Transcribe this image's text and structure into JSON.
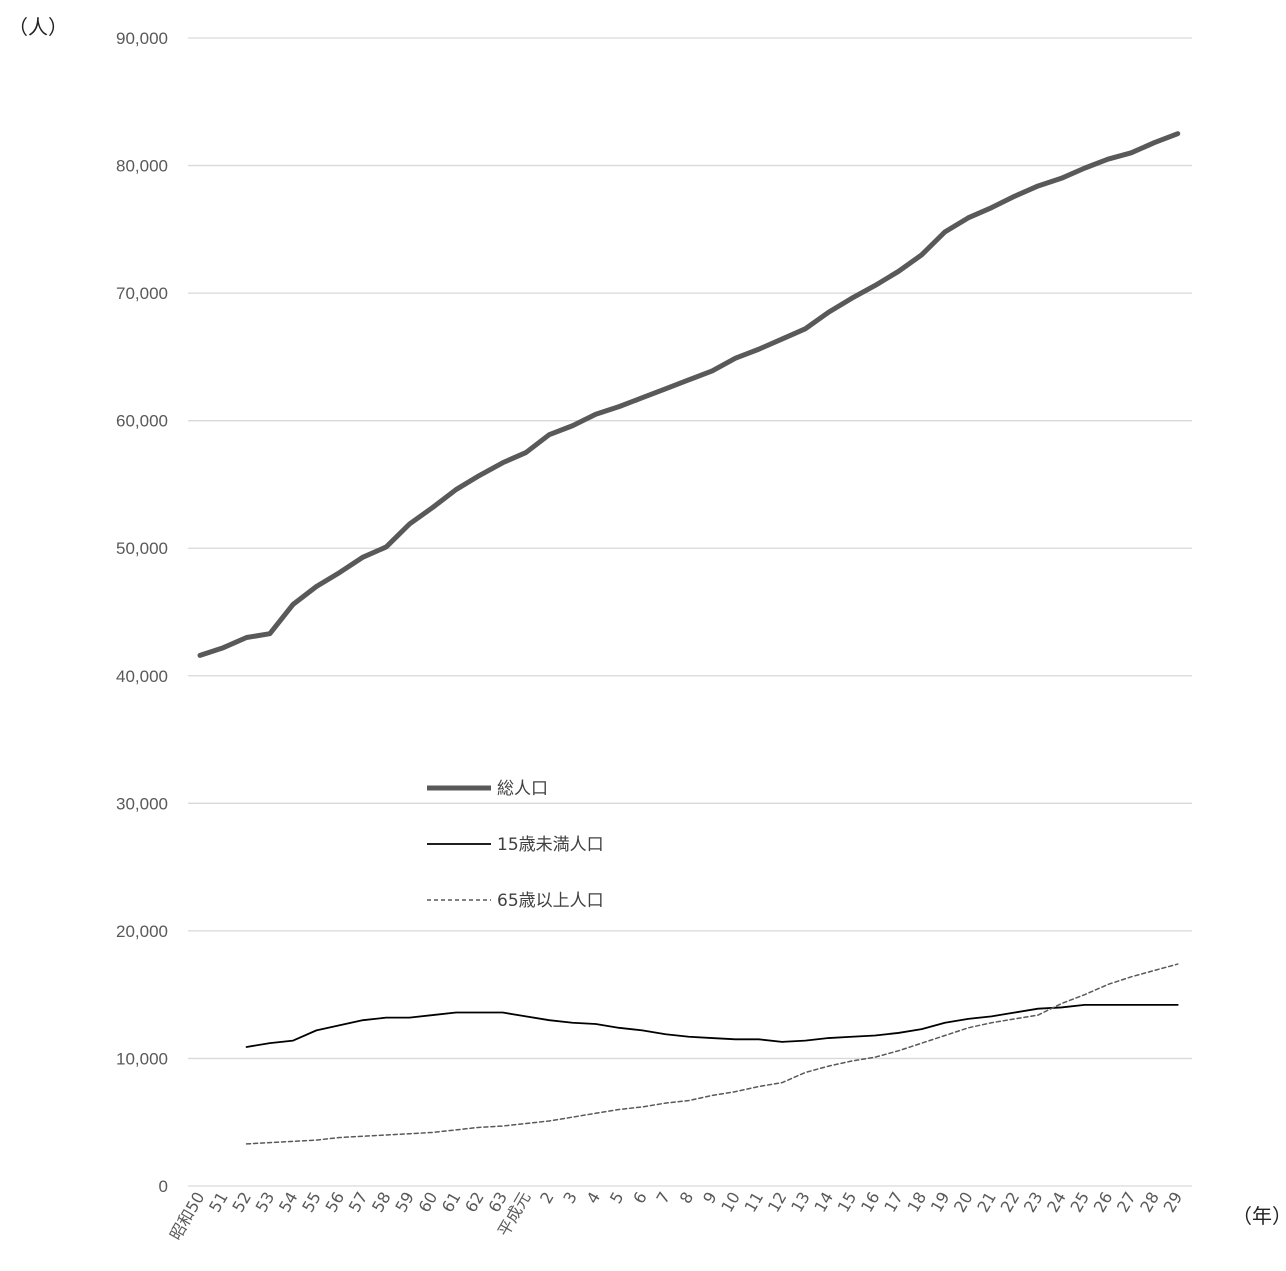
{
  "chart_data": {
    "type": "line",
    "y_unit_label": "（人）",
    "x_unit_label": "（年）",
    "ylim": [
      0,
      90000
    ],
    "yticks": [
      0,
      10000,
      20000,
      30000,
      40000,
      50000,
      60000,
      70000,
      80000,
      90000
    ],
    "ytick_labels": [
      "0",
      "10,000",
      "20,000",
      "30,000",
      "40,000",
      "50,000",
      "60,000",
      "70,000",
      "80,000",
      "90,000"
    ],
    "grid": true,
    "legend_position": "center-left",
    "categories": [
      "昭和50",
      "51",
      "52",
      "53",
      "54",
      "55",
      "56",
      "57",
      "58",
      "59",
      "60",
      "61",
      "62",
      "63",
      "平成元",
      "2",
      "3",
      "4",
      "5",
      "6",
      "7",
      "8",
      "9",
      "10",
      "11",
      "12",
      "13",
      "14",
      "15",
      "16",
      "17",
      "18",
      "19",
      "20",
      "21",
      "22",
      "23",
      "24",
      "25",
      "26",
      "27",
      "28",
      "29"
    ],
    "series": [
      {
        "name": "総人口",
        "color": "#595959",
        "style": "thick",
        "values": [
          41600,
          42200,
          43000,
          43300,
          45600,
          47000,
          48100,
          49300,
          50100,
          51900,
          53200,
          54600,
          55700,
          56700,
          57500,
          58900,
          59600,
          60500,
          61100,
          61800,
          62500,
          63200,
          63900,
          64900,
          65600,
          66400,
          67200,
          68500,
          69600,
          70600,
          71700,
          73000,
          74800,
          75900,
          76700,
          77600,
          78400,
          79000,
          79800,
          80500,
          81000,
          81800,
          82500
        ]
      },
      {
        "name": "15歳未満人口",
        "color": "#000000",
        "style": "solid",
        "values": [
          null,
          null,
          10900,
          11200,
          11400,
          12200,
          12600,
          13000,
          13200,
          13200,
          13400,
          13600,
          13600,
          13600,
          13300,
          13000,
          12800,
          12700,
          12400,
          12200,
          11900,
          11700,
          11600,
          11500,
          11500,
          11300,
          11400,
          11600,
          11700,
          11800,
          12000,
          12300,
          12800,
          13100,
          13300,
          13600,
          13900,
          14000,
          14200,
          14200,
          14200,
          14200,
          14200
        ]
      },
      {
        "name": "65歳以上人口",
        "color": "#595959",
        "style": "dashed",
        "values": [
          null,
          null,
          3300,
          3400,
          3500,
          3600,
          3800,
          3900,
          4000,
          4100,
          4200,
          4400,
          4600,
          4700,
          4900,
          5100,
          5400,
          5700,
          6000,
          6200,
          6500,
          6700,
          7100,
          7400,
          7800,
          8100,
          8900,
          9400,
          9800,
          10100,
          10600,
          11200,
          11800,
          12400,
          12800,
          13100,
          13400,
          14300,
          15000,
          15800,
          16400,
          16900,
          17400
        ]
      }
    ]
  }
}
